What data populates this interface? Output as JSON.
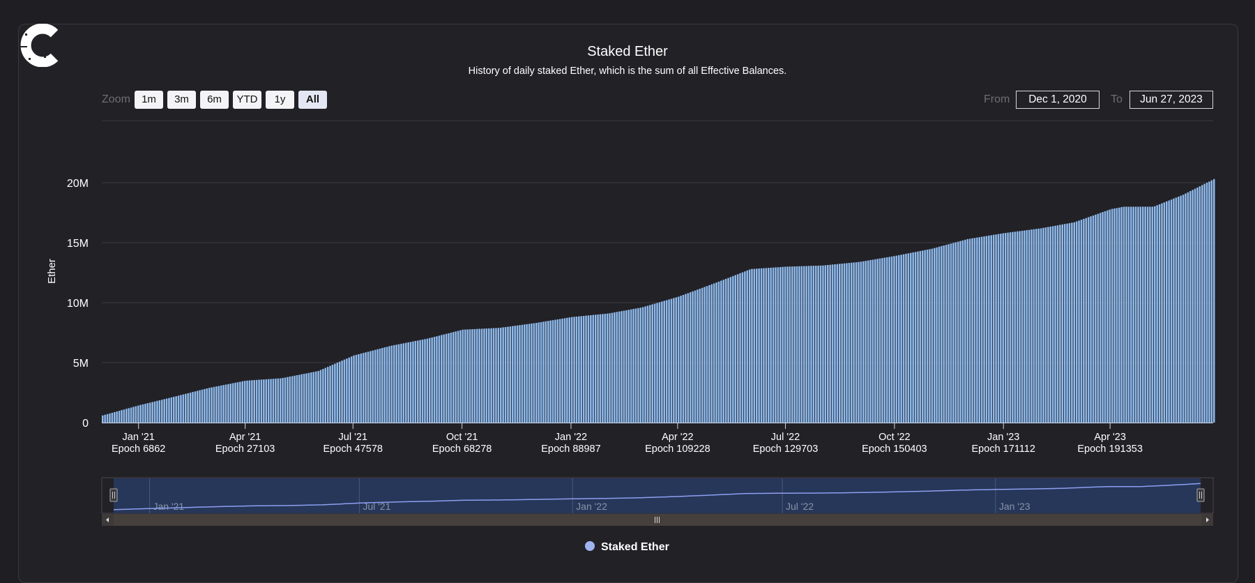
{
  "title": "Staked Ether",
  "subtitle": "History of daily staked Ether, which is the sum of all Effective Balances.",
  "zoom": {
    "label": "Zoom",
    "buttons": [
      "1m",
      "3m",
      "6m",
      "YTD",
      "1y",
      "All"
    ],
    "selected": "All"
  },
  "range": {
    "from_label": "From",
    "from_value": "Dec 1, 2020",
    "to_label": "To",
    "to_value": "Jun 27, 2023"
  },
  "legend": {
    "label": "Staked Ether",
    "color": "#9fb3ee"
  },
  "colors": {
    "bar": "#8fbbee",
    "navigator_line": "#8e9ff0",
    "navigator_fill": "#26375a",
    "scrollbar": "#46403d"
  },
  "logo": "C",
  "chart_data": {
    "type": "bar",
    "title": "Staked Ether",
    "subtitle": "History of daily staked Ether, which is the sum of all Effective Balances.",
    "ylabel": "Ether",
    "ylim": [
      0,
      25000000
    ],
    "yticks": [
      {
        "value": 0,
        "label": "0"
      },
      {
        "value": 5000000,
        "label": "5M"
      },
      {
        "value": 10000000,
        "label": "10M"
      },
      {
        "value": 15000000,
        "label": "15M"
      },
      {
        "value": 20000000,
        "label": "20M"
      }
    ],
    "xlim": [
      "2020-12-01",
      "2023-06-27"
    ],
    "xticks": [
      {
        "date": "2021-01-01",
        "label": "Jan '21",
        "epoch": "Epoch 6862"
      },
      {
        "date": "2021-04-01",
        "label": "Apr '21",
        "epoch": "Epoch 27103"
      },
      {
        "date": "2021-07-01",
        "label": "Jul '21",
        "epoch": "Epoch 47578"
      },
      {
        "date": "2021-10-01",
        "label": "Oct '21",
        "epoch": "Epoch 68278"
      },
      {
        "date": "2022-01-01",
        "label": "Jan '22",
        "epoch": "Epoch 88987"
      },
      {
        "date": "2022-04-01",
        "label": "Apr '22",
        "epoch": "Epoch 109228"
      },
      {
        "date": "2022-07-01",
        "label": "Jul '22",
        "epoch": "Epoch 129703"
      },
      {
        "date": "2022-10-01",
        "label": "Oct '22",
        "epoch": "Epoch 150403"
      },
      {
        "date": "2023-01-01",
        "label": "Jan '23",
        "epoch": "Epoch 171112"
      },
      {
        "date": "2023-04-01",
        "label": "Apr '23",
        "epoch": "Epoch 191353"
      }
    ],
    "navigator_ticks": [
      {
        "date": "2021-01-01",
        "label": "Jan '21"
      },
      {
        "date": "2021-07-01",
        "label": "Jul '21"
      },
      {
        "date": "2022-01-01",
        "label": "Jan '22"
      },
      {
        "date": "2022-07-01",
        "label": "Jul '22"
      },
      {
        "date": "2023-01-01",
        "label": "Jan '23"
      }
    ],
    "series": [
      {
        "name": "Staked Ether",
        "points": [
          [
            "2020-12-01",
            600000
          ],
          [
            "2021-01-01",
            1450000
          ],
          [
            "2021-02-01",
            2200000
          ],
          [
            "2021-03-01",
            2900000
          ],
          [
            "2021-04-01",
            3500000
          ],
          [
            "2021-05-01",
            3700000
          ],
          [
            "2021-06-01",
            4300000
          ],
          [
            "2021-07-01",
            5600000
          ],
          [
            "2021-08-01",
            6400000
          ],
          [
            "2021-09-01",
            7000000
          ],
          [
            "2021-10-01",
            7750000
          ],
          [
            "2021-11-01",
            7900000
          ],
          [
            "2021-12-01",
            8300000
          ],
          [
            "2022-01-01",
            8800000
          ],
          [
            "2022-02-01",
            9100000
          ],
          [
            "2022-03-01",
            9600000
          ],
          [
            "2022-04-01",
            10500000
          ],
          [
            "2022-05-01",
            11600000
          ],
          [
            "2022-06-01",
            12800000
          ],
          [
            "2022-07-01",
            13000000
          ],
          [
            "2022-08-01",
            13100000
          ],
          [
            "2022-09-01",
            13400000
          ],
          [
            "2022-10-01",
            13900000
          ],
          [
            "2022-11-01",
            14500000
          ],
          [
            "2022-12-01",
            15300000
          ],
          [
            "2023-01-01",
            15800000
          ],
          [
            "2023-02-01",
            16200000
          ],
          [
            "2023-03-01",
            16700000
          ],
          [
            "2023-04-01",
            17800000
          ],
          [
            "2023-04-12",
            18000000
          ],
          [
            "2023-05-07",
            18000000
          ],
          [
            "2023-06-01",
            19000000
          ],
          [
            "2023-06-27",
            20300000
          ]
        ]
      }
    ],
    "legend_position": "bottom-center",
    "grid": true,
    "navigator": true
  }
}
